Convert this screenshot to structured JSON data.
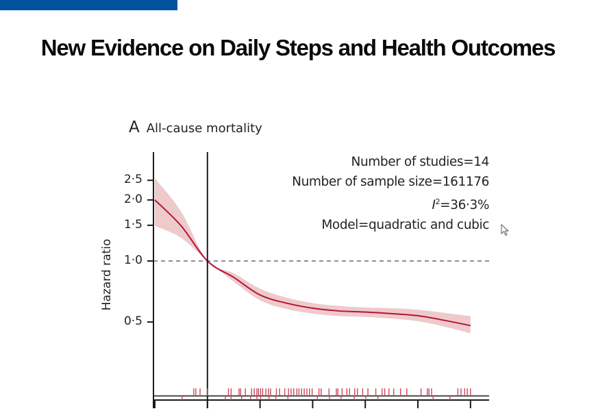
{
  "slide": {
    "title": "New Evidence on Daily Steps and Health Outcomes",
    "accent_bar_color": "#02519c"
  },
  "panel": {
    "letter": "A",
    "name": "All-cause mortality"
  },
  "stats": {
    "studies": "Number of studies=14",
    "sample": "Number of sample size=161176",
    "i2_symbol": "I",
    "i2_sup": "2",
    "i2_value": "=36·3%",
    "model": "Model=quadratic and cubic"
  },
  "chart_data": {
    "type": "line",
    "title": "All-cause mortality",
    "xlabel": "",
    "ylabel": "Hazard ratio",
    "y_scale": "log",
    "ylim": [
      0.3,
      2.75
    ],
    "yticks": [
      0.5,
      1.0,
      1.5,
      2.0,
      2.5
    ],
    "ytick_labels": [
      "0·5",
      "1·0",
      "1·5",
      "2·0",
      "2·5"
    ],
    "xlim": [
      0,
      6.4
    ],
    "xticks": [
      0,
      1,
      2,
      3,
      4,
      5,
      6
    ],
    "xtick_labels": [],
    "reference_x": 1,
    "reference_hr": 1.0,
    "grid": false,
    "colors": {
      "curve": "#b5123a",
      "band": "#eecaca",
      "reference_dash": "#5b6e78",
      "rug": "#c8475e",
      "axis": "#1a1a1a"
    },
    "series": [
      {
        "name": "Hazard ratio",
        "x": [
          0,
          0.5,
          1,
          1.5,
          2,
          2.5,
          3,
          3.5,
          4,
          4.5,
          5,
          5.5,
          6
        ],
        "y": [
          2.0,
          1.49,
          1.0,
          0.83,
          0.68,
          0.62,
          0.585,
          0.567,
          0.56,
          0.55,
          0.537,
          0.51,
          0.48
        ],
        "lower": [
          1.49,
          1.3,
          1.0,
          0.79,
          0.64,
          0.58,
          0.55,
          0.535,
          0.53,
          0.52,
          0.505,
          0.475,
          0.44
        ],
        "upper": [
          2.56,
          1.75,
          1.0,
          0.87,
          0.73,
          0.66,
          0.62,
          0.6,
          0.59,
          0.585,
          0.575,
          0.555,
          0.535
        ]
      }
    ],
    "rug_upper": [
      0.74,
      0.78,
      0.86,
      1.0,
      1.4,
      1.45,
      1.6,
      1.63,
      1.72,
      1.84,
      1.89,
      1.94,
      1.97,
      2.01,
      2.05,
      2.11,
      2.16,
      2.2,
      2.31,
      2.37,
      2.47,
      2.54,
      2.59,
      2.64,
      2.7,
      2.74,
      2.79,
      2.84,
      2.89,
      2.94,
      2.99,
      3.12,
      3.16,
      3.31,
      3.45,
      3.48,
      3.56,
      3.65,
      3.7,
      3.8,
      3.85,
      3.95,
      4.05,
      4.2,
      4.32,
      4.37,
      4.45,
      4.54,
      4.67,
      4.79,
      5.06,
      5.18,
      5.21,
      5.26,
      5.76,
      5.82,
      5.89,
      5.94,
      6.0
    ],
    "rug_lower": [
      0.52,
      1.34,
      1.45,
      1.65,
      1.82,
      1.94,
      2.01,
      2.17,
      2.3,
      2.53,
      3.09,
      3.32,
      3.54,
      3.79,
      4.01,
      4.24,
      5.29,
      5.61
    ]
  }
}
